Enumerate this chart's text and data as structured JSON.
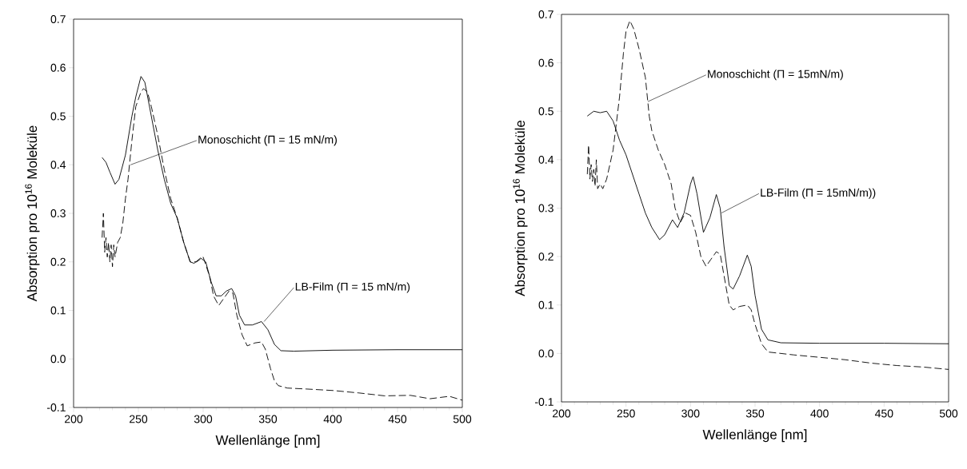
{
  "chart_data": [
    {
      "type": "line",
      "xlabel": "Wellenlänge [nm]",
      "ylabel": "Absorption pro 10$^{16}$ Moleküle",
      "xlim": [
        200,
        500
      ],
      "ylim": [
        -0.1,
        0.7
      ],
      "xticks": [
        200,
        {
          "value": 210,
          "label": null
        },
        {
          "value": 220,
          "label": null
        },
        {
          "value": 230,
          "label": null
        },
        {
          "value": 240,
          "label": null
        },
        250,
        {
          "value": 260,
          "label": null
        },
        {
          "value": 270,
          "label": null
        },
        {
          "value": 280,
          "label": null
        },
        {
          "value": 290,
          "label": null
        },
        300,
        {
          "value": 310,
          "label": null
        },
        {
          "value": 320,
          "label": null
        },
        {
          "value": 330,
          "label": null
        },
        {
          "value": 340,
          "label": null
        },
        350,
        {
          "value": 360,
          "label": null
        },
        {
          "value": 370,
          "label": null
        },
        {
          "value": 380,
          "label": null
        },
        {
          "value": 390,
          "label": null
        },
        400,
        {
          "value": 410,
          "label": null
        },
        {
          "value": 420,
          "label": null
        },
        {
          "value": 430,
          "label": null
        },
        {
          "value": 440,
          "label": null
        },
        450,
        {
          "value": 460,
          "label": null
        },
        {
          "value": 470,
          "label": null
        },
        {
          "value": 480,
          "label": null
        },
        {
          "value": 490,
          "label": null
        },
        500
      ],
      "yticks": [
        -0.1,
        {
          "value": 0,
          "label": "0.0"
        },
        0.1,
        0.2,
        0.3,
        0.4,
        0.5,
        0.6,
        0.7
      ],
      "series": [
        {
          "color": "#000000",
          "line_style": "solid",
          "x": [
            222,
            225,
            228,
            232,
            235,
            240,
            245,
            248,
            252,
            255,
            260,
            265,
            270,
            275,
            280,
            285,
            290,
            293,
            298,
            302,
            306,
            310,
            314,
            318,
            322,
            325,
            328,
            332,
            338,
            345,
            350,
            355,
            360,
            370,
            400,
            450,
            500
          ],
          "values": [
            0.415,
            0.405,
            0.385,
            0.36,
            0.37,
            0.42,
            0.5,
            0.54,
            0.582,
            0.57,
            0.5,
            0.43,
            0.37,
            0.32,
            0.29,
            0.24,
            0.2,
            0.197,
            0.208,
            0.2,
            0.16,
            0.13,
            0.13,
            0.14,
            0.145,
            0.13,
            0.09,
            0.07,
            0.07,
            0.077,
            0.06,
            0.03,
            0.017,
            0.016,
            0.018,
            0.019,
            0.019
          ]
        },
        {
          "color": "#000000",
          "line_style": "dashed",
          "x": [
            222,
            223,
            224,
            225,
            226,
            227,
            228,
            229,
            230,
            231,
            232,
            234,
            236,
            238,
            240,
            242,
            245,
            248,
            252,
            254,
            257,
            260,
            265,
            270,
            275,
            280,
            285,
            290,
            295,
            300,
            305,
            308,
            312,
            316,
            320,
            323,
            326,
            330,
            334,
            340,
            345,
            348,
            352,
            355,
            358,
            365,
            380,
            400,
            420,
            440,
            460,
            475,
            490,
            500
          ],
          "values": [
            0.25,
            0.3,
            0.22,
            0.25,
            0.21,
            0.24,
            0.2,
            0.235,
            0.19,
            0.235,
            0.21,
            0.24,
            0.25,
            0.28,
            0.33,
            0.37,
            0.45,
            0.52,
            0.55,
            0.557,
            0.55,
            0.52,
            0.46,
            0.39,
            0.33,
            0.29,
            0.24,
            0.2,
            0.2,
            0.21,
            0.17,
            0.13,
            0.11,
            0.125,
            0.14,
            0.135,
            0.09,
            0.05,
            0.027,
            0.033,
            0.035,
            0.02,
            -0.02,
            -0.045,
            -0.055,
            -0.06,
            -0.062,
            -0.065,
            -0.07,
            -0.076,
            -0.075,
            -0.082,
            -0.077,
            -0.085
          ]
        }
      ],
      "annotations": [
        {
          "text": "Monoschicht (Π = 15 mN/m)",
          "x": 244,
          "y": 0.4
        },
        {
          "text": "LB-Film (Π = 15 mN/m)",
          "x": 347,
          "y": 0.077
        }
      ]
    },
    {
      "type": "line",
      "xlabel": "Wellenlänge [nm]",
      "ylabel": "Absorption pro 10$^{16}$ Moleküle",
      "xlim": [
        200,
        500
      ],
      "ylim": [
        -0.1,
        0.7
      ],
      "xticks": [
        200,
        {
          "value": 210,
          "label": null
        },
        {
          "value": 220,
          "label": null
        },
        {
          "value": 230,
          "label": null
        },
        {
          "value": 240,
          "label": null
        },
        250,
        {
          "value": 260,
          "label": null
        },
        {
          "value": 270,
          "label": null
        },
        {
          "value": 280,
          "label": null
        },
        {
          "value": 290,
          "label": null
        },
        300,
        {
          "value": 310,
          "label": null
        },
        {
          "value": 320,
          "label": null
        },
        {
          "value": 330,
          "label": null
        },
        {
          "value": 340,
          "label": null
        },
        350,
        {
          "value": 360,
          "label": null
        },
        {
          "value": 370,
          "label": null
        },
        {
          "value": 380,
          "label": null
        },
        {
          "value": 390,
          "label": null
        },
        400,
        {
          "value": 410,
          "label": null
        },
        {
          "value": 420,
          "label": null
        },
        {
          "value": 430,
          "label": null
        },
        {
          "value": 440,
          "label": null
        },
        450,
        {
          "value": 460,
          "label": null
        },
        {
          "value": 470,
          "label": null
        },
        {
          "value": 480,
          "label": null
        },
        {
          "value": 490,
          "label": null
        },
        500
      ],
      "yticks": [
        -0.1,
        {
          "value": 0,
          "label": "0.0"
        },
        0.1,
        0.2,
        0.3,
        0.4,
        0.5,
        0.6,
        0.7
      ],
      "series": [
        {
          "color": "#000000",
          "line_style": "solid",
          "x": [
            220,
            225,
            230,
            235,
            240,
            245,
            250,
            255,
            260,
            265,
            270,
            276,
            280,
            286,
            290,
            295,
            300,
            302,
            305,
            310,
            315,
            320,
            323,
            326,
            330,
            333,
            338,
            344,
            347,
            350,
            355,
            360,
            370,
            400,
            450,
            500
          ],
          "values": [
            0.49,
            0.5,
            0.497,
            0.5,
            0.48,
            0.44,
            0.41,
            0.37,
            0.33,
            0.29,
            0.26,
            0.235,
            0.245,
            0.276,
            0.26,
            0.29,
            0.35,
            0.365,
            0.33,
            0.25,
            0.28,
            0.328,
            0.3,
            0.22,
            0.14,
            0.133,
            0.16,
            0.203,
            0.18,
            0.12,
            0.05,
            0.028,
            0.022,
            0.021,
            0.021,
            0.02
          ]
        },
        {
          "color": "#000000",
          "line_style": "dashed",
          "x": [
            220,
            221,
            222,
            223,
            224,
            225,
            226,
            227,
            228,
            230,
            232,
            235,
            240,
            245,
            248,
            250,
            253,
            256,
            260,
            265,
            268,
            270,
            275,
            280,
            285,
            288,
            292,
            296,
            300,
            304,
            308,
            312,
            316,
            320,
            323,
            326,
            330,
            333,
            338,
            344,
            347,
            350,
            355,
            360,
            380,
            400,
            420,
            440,
            460,
            480,
            500
          ],
          "values": [
            0.37,
            0.43,
            0.36,
            0.39,
            0.355,
            0.38,
            0.345,
            0.4,
            0.34,
            0.35,
            0.34,
            0.36,
            0.42,
            0.53,
            0.62,
            0.665,
            0.687,
            0.67,
            0.63,
            0.57,
            0.49,
            0.46,
            0.42,
            0.39,
            0.35,
            0.3,
            0.27,
            0.29,
            0.285,
            0.25,
            0.2,
            0.18,
            0.195,
            0.21,
            0.205,
            0.16,
            0.1,
            0.09,
            0.097,
            0.1,
            0.09,
            0.06,
            0.02,
            0.003,
            -0.003,
            -0.008,
            -0.013,
            -0.02,
            -0.025,
            -0.028,
            -0.033
          ]
        }
      ],
      "annotations": [
        {
          "text": "Monoschicht (Π = 15mN/m)",
          "x": 267,
          "y": 0.52
        },
        {
          "text": "LB-Film (Π = 15mN/m))",
          "x": 324,
          "y": 0.29
        }
      ]
    }
  ]
}
